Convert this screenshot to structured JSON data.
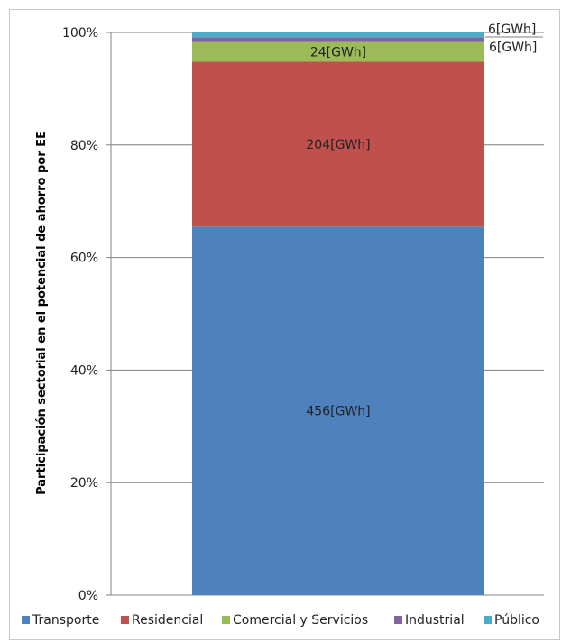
{
  "chart_data": {
    "type": "bar",
    "stacked": true,
    "normalized": true,
    "title": "",
    "xlabel": "",
    "ylabel": "Participación sectorial en el potencial de ahorro por EE",
    "ylim": [
      0,
      100
    ],
    "yticks": [
      "0%",
      "20%",
      "40%",
      "60%",
      "80%",
      "100%"
    ],
    "ytick_values": [
      0,
      20,
      40,
      60,
      80,
      100
    ],
    "grid": "horizontal",
    "legend_position": "bottom",
    "categories": [
      ""
    ],
    "series": [
      {
        "name": "Transporte",
        "values": [
          65.5
        ],
        "label": "456[GWh]",
        "color": "#4f81bd"
      },
      {
        "name": "Residencial",
        "values": [
          29.3
        ],
        "label": "204[GWh]",
        "color": "#c0504d"
      },
      {
        "name": "Comercial y Servicios",
        "values": [
          3.5
        ],
        "label": "24[GWh]",
        "color": "#9bbb59"
      },
      {
        "name": "Industrial",
        "values": [
          0.85
        ],
        "label": "6[GWh]",
        "color": "#8064a2"
      },
      {
        "name": "Público",
        "values": [
          0.85
        ],
        "label": "6[GWh]",
        "color": "#4bacc6"
      }
    ]
  }
}
